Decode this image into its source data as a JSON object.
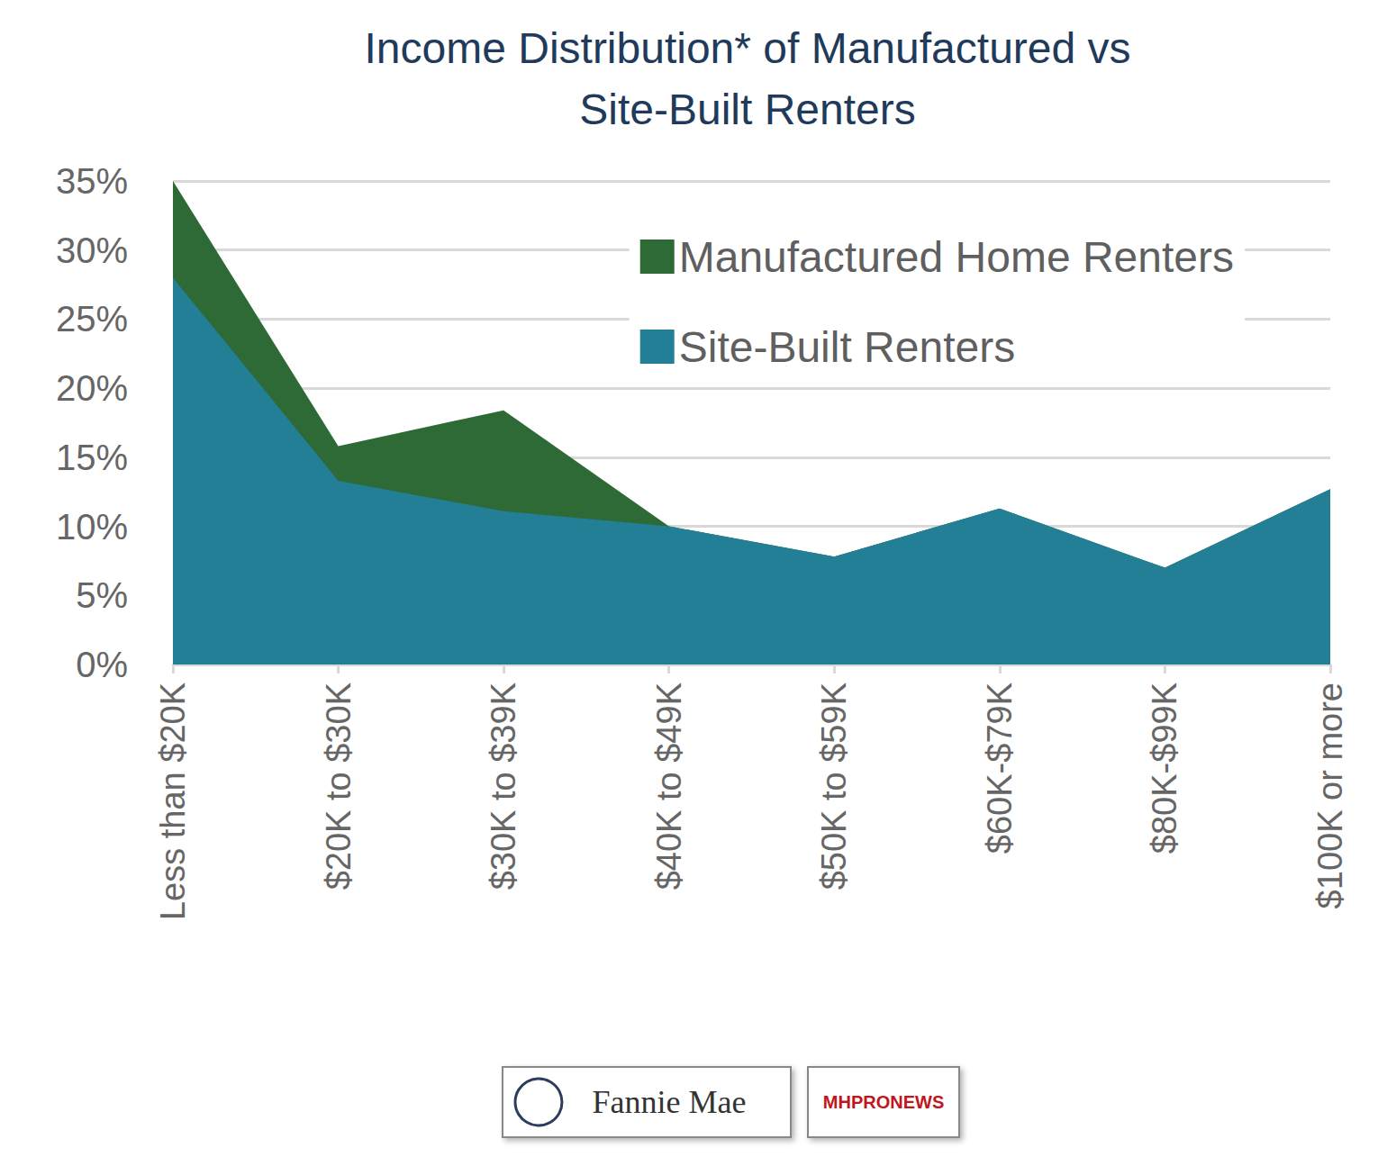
{
  "chart_data": {
    "type": "area",
    "title": "Income Distribution* of Manufactured vs\nSite-Built Renters",
    "categories": [
      "Less than $20K",
      "$20K to $30K",
      "$30K to $39K",
      "$40K to $49K",
      "$50K to $59K",
      "$60K-$79K",
      "$80K-$99K",
      "$100K or more"
    ],
    "series": [
      {
        "name": "Manufactured Home Renters",
        "color": "#2e6a36",
        "values": [
          35,
          15.8,
          18.4,
          10,
          7.8,
          11.3,
          7,
          12.7
        ]
      },
      {
        "name": "Site-Built Renters",
        "color": "#237f96",
        "values": [
          28,
          13.3,
          11.1,
          10,
          7.8,
          11.3,
          7,
          12.7
        ]
      }
    ],
    "ylim": [
      0,
      35
    ],
    "yticks": [
      {
        "value": 0,
        "label": "0%"
      },
      {
        "value": 5,
        "label": "5%"
      },
      {
        "value": 10,
        "label": "10%"
      },
      {
        "value": 15,
        "label": "15%"
      },
      {
        "value": 20,
        "label": "20%"
      },
      {
        "value": 25,
        "label": "25%"
      },
      {
        "value": 30,
        "label": "30%"
      },
      {
        "value": 35,
        "label": "35%"
      }
    ],
    "grid": true,
    "legend": "top-right",
    "annotations": [
      "Fannie Mae",
      "MHPRONEWS"
    ]
  }
}
